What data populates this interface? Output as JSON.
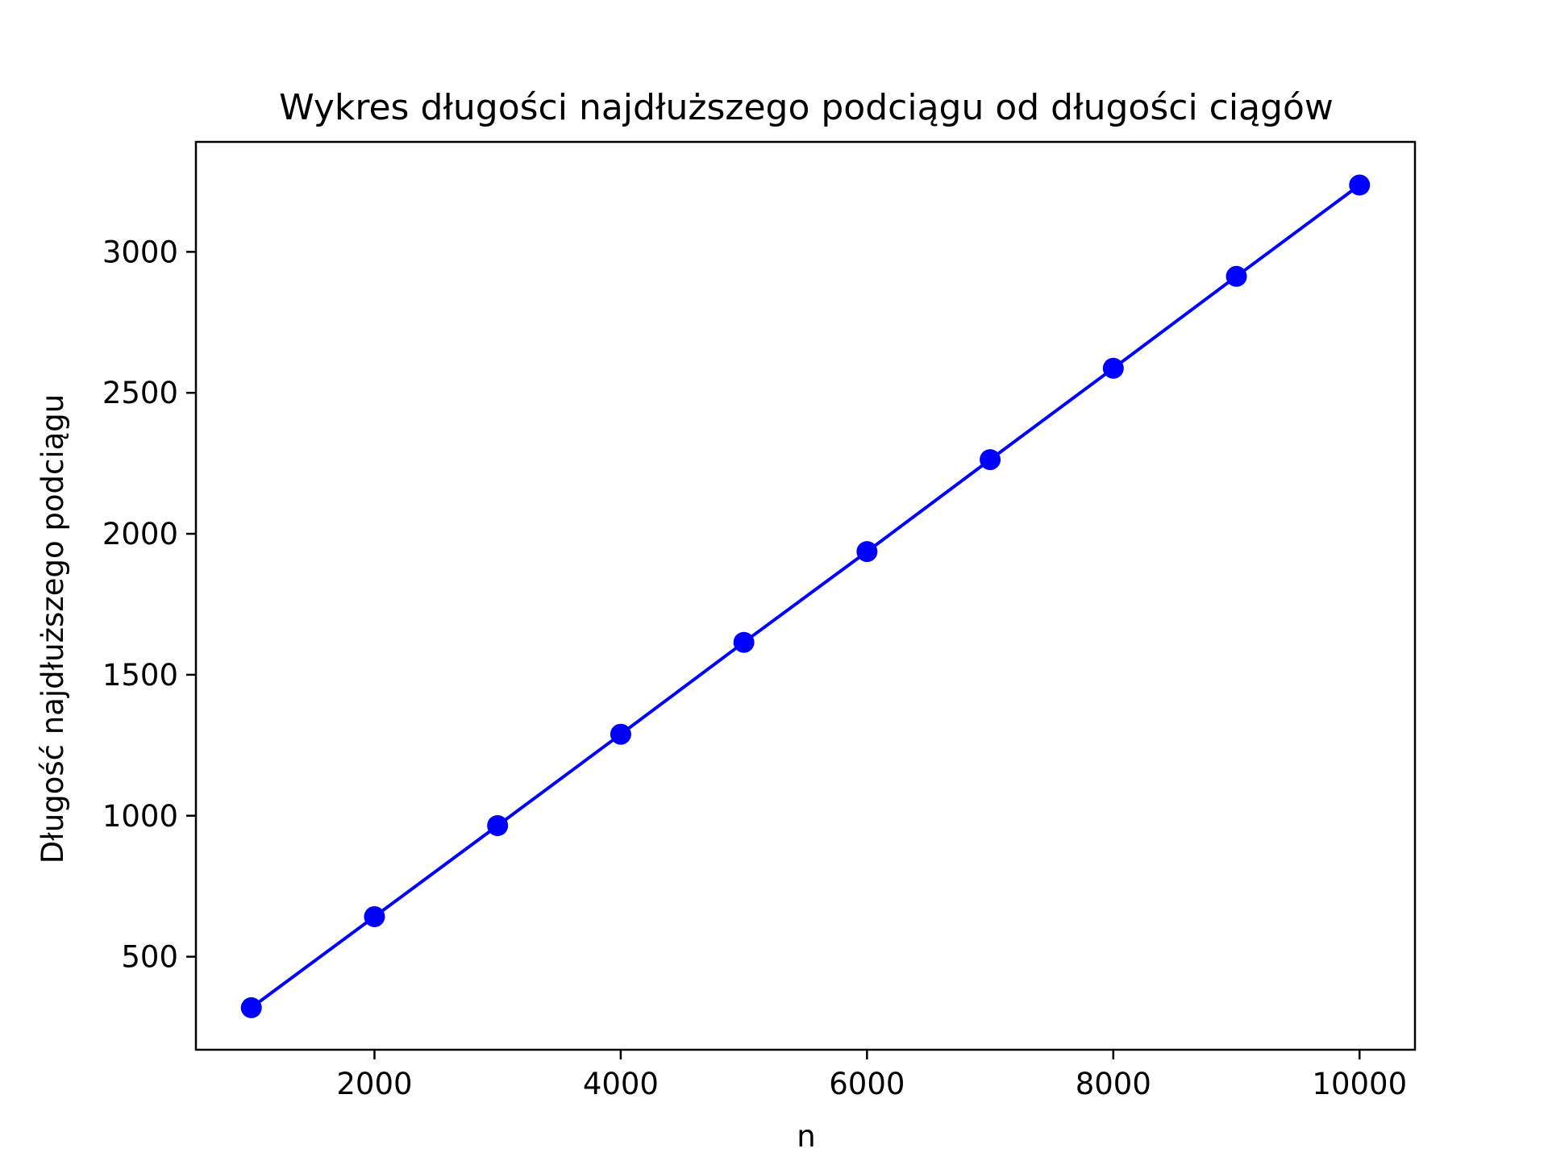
{
  "chart_data": {
    "type": "line",
    "title": "Wykres długości najdłuższego podciągu od długości ciągów",
    "xlabel": "n",
    "ylabel": "Długość najdłuższego podciągu",
    "xlim": [
      550,
      10450
    ],
    "ylim": [
      170,
      3390
    ],
    "xticks": [
      2000,
      4000,
      6000,
      8000,
      10000
    ],
    "yticks": [
      500,
      1000,
      1500,
      2000,
      2500,
      3000
    ],
    "grid": false,
    "series": [
      {
        "color": "#0000ff",
        "marker": "circle",
        "x": [
          1000,
          2000,
          3000,
          4000,
          5000,
          6000,
          7000,
          8000,
          9000,
          10000
        ],
        "y": [
          319,
          642,
          965,
          1289,
          1615,
          1937,
          2263,
          2587,
          2913,
          3237
        ]
      }
    ]
  }
}
